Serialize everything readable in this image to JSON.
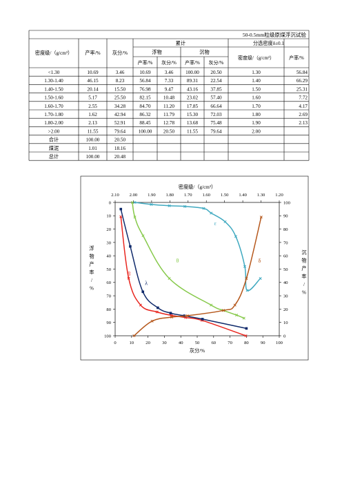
{
  "sheet": {
    "title": "50-0.5mm粒级原煤浮沉试验",
    "header": {
      "density": "密度级/（g/cm³）",
      "yield": "产率/%",
      "ash": "灰分/%",
      "cumulative": "累计",
      "float": "浮物",
      "sink": "沉物",
      "yield_sub": "产率/%",
      "ash_sub": "灰分/%",
      "separation": "分选密度δ±0.1",
      "sep_density": "密度级/（g/cm³）",
      "sep_yield": "产率/%"
    },
    "rows": [
      [
        "<1.30",
        "10.69",
        "3.46",
        "10.69",
        "3.46",
        "100.00",
        "20.50",
        "1.30",
        "56.84"
      ],
      [
        "1.30-1.40",
        "46.15",
        "8.23",
        "56.84",
        "7.33",
        "89.31",
        "22.54",
        "1.40",
        "66.29"
      ],
      [
        "1.40-1.50",
        "20.14",
        "15.50",
        "76.98",
        "9.47",
        "43.16",
        "37.85",
        "1.50",
        "25.31"
      ],
      [
        "1.50-1.60",
        "5.17",
        "25.50",
        "82.15",
        "10.48",
        "23.02",
        "57.40",
        "1.60",
        "7.72"
      ],
      [
        "1.60-1.70",
        "2.55",
        "34.28",
        "84.70",
        "11.20",
        "17.85",
        "66.64",
        "1.70",
        "4.17"
      ],
      [
        "1.70-1.80",
        "1.62",
        "42.94",
        "86.32",
        "11.79",
        "15.30",
        "72.03",
        "1.80",
        "2.69"
      ],
      [
        "1.80-2.00",
        "2.13",
        "52.91",
        "88.45",
        "12.78",
        "13.68",
        "75.48",
        "1.90",
        "2.13"
      ],
      [
        ">2.00",
        "11.55",
        "79.64",
        "100.00",
        "20.50",
        "11.55",
        "79.64",
        "2.00",
        ""
      ],
      [
        "合计",
        "100.00",
        "20.50",
        "",
        "",
        "",
        "",
        "",
        ""
      ],
      [
        "煤泥",
        "1.01",
        "18.16",
        "",
        "",
        "",
        "",
        "",
        ""
      ],
      [
        "总计",
        "100.00",
        "20.48",
        "",
        "",
        "",
        "",
        "",
        ""
      ]
    ]
  },
  "chart_data": {
    "type": "line",
    "title": "",
    "xlabel": "灰分/%",
    "x_top_label": "密度级/（g/cm³）",
    "ylabel_left": "浮物产率/%",
    "ylabel_right": "沉物产率/%",
    "xlim": [
      0,
      100
    ],
    "x_ticks": [
      "0",
      "10",
      "20",
      "30",
      "40",
      "50",
      "60",
      "70",
      "80",
      "90",
      "100"
    ],
    "x_top_lim": [
      2.1,
      1.2
    ],
    "x_top_ticks": [
      "2.10",
      "2.00",
      "1.90",
      "1.80",
      "1.70",
      "1.60",
      "1.50",
      "1.40",
      "1.30",
      "1.20"
    ],
    "ylim_left": [
      0,
      100
    ],
    "y_left_ticks": [
      "0",
      "10",
      "20",
      "30",
      "40",
      "50",
      "60",
      "70",
      "80",
      "90",
      "100"
    ],
    "ylim_right": [
      0,
      100
    ],
    "y_right_ticks": [
      "0",
      "10",
      "20",
      "30",
      "40",
      "50",
      "60",
      "70",
      "80",
      "90",
      "100"
    ],
    "series": [
      {
        "name": "β",
        "color": "#e8261f",
        "marker": "x",
        "x": [
          3.46,
          8.23,
          15.5,
          25.5,
          34.28,
          42.94,
          52.91,
          79.64
        ],
        "y": [
          10.69,
          56.84,
          76.98,
          82.15,
          84.7,
          86.32,
          88.45,
          100
        ]
      },
      {
        "name": "λ",
        "color": "#0f2a6b",
        "marker": "square",
        "x": [
          3.46,
          9.2,
          16.9,
          26.0,
          33.8,
          42.1,
          53.2,
          80.0
        ],
        "y": [
          5.0,
          33.0,
          67.0,
          79.0,
          83.0,
          85.0,
          87.5,
          94.5
        ]
      },
      {
        "name": "θ",
        "color": "#86c94a",
        "marker": "x",
        "x": [
          10.5,
          12.0,
          17.0,
          33.0,
          58.5,
          66.0,
          74.0,
          78.5
        ],
        "y": [
          0.0,
          11.0,
          25.0,
          57.0,
          77.0,
          81.0,
          84.5,
          86.8
        ]
      },
      {
        "name": "ε",
        "color": "#3fa9c0",
        "marker": "x",
        "x": [
          12.0,
          22.0,
          33.0,
          42.5,
          54.0,
          58.5,
          67.0,
          73.5,
          79.0,
          80.5,
          88.5
        ],
        "y": [
          0.0,
          1.5,
          2.5,
          3.0,
          4.5,
          8.0,
          14.5,
          25.5,
          48.0,
          66.0,
          57.0
        ]
      },
      {
        "name": "δ",
        "color": "#b5571b",
        "marker": "x",
        "x": [
          11.5,
          22.5,
          34.5,
          44.0,
          66.0,
          73.0,
          80.0,
          89.0
        ],
        "y": [
          100.0,
          89.0,
          86.0,
          85.0,
          81.0,
          77.0,
          57.0,
          11.0
        ]
      }
    ],
    "curve_labels": [
      "β",
      "λ",
      "θ",
      "ε",
      "δ"
    ]
  }
}
